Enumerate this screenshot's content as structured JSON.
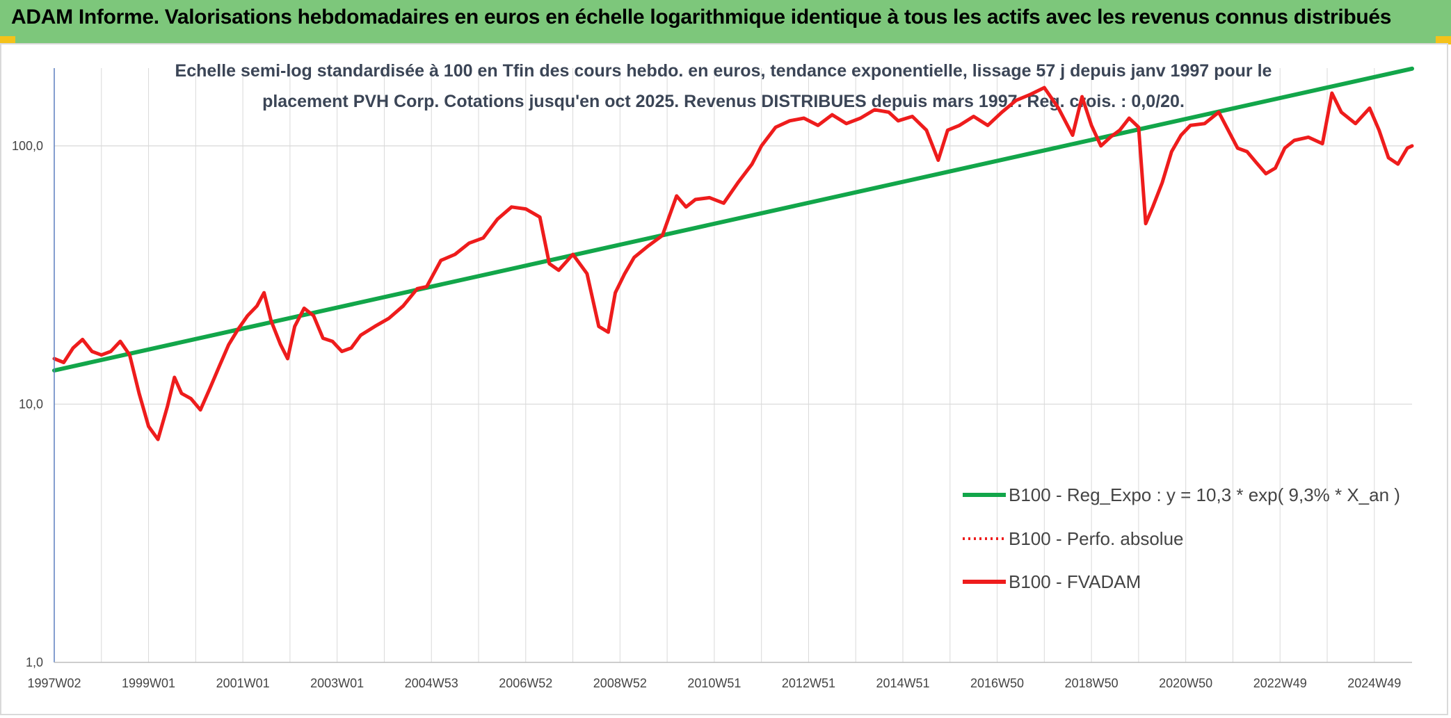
{
  "header": {
    "title": "ADAM Informe. Valorisations hebdomadaires en euros en échelle logarithmique identique à tous les actifs avec les revenus connus distribués"
  },
  "colors": {
    "banner": "#7dc77b",
    "corner_marker": "#f4c21a",
    "trend_line": "#12a64a",
    "fvadam_line": "#ee1c1c",
    "perfo_line": "#ee1c1c",
    "grid": "#d9d9d9",
    "axis": "#5b7fbf"
  },
  "chart_data": {
    "type": "line",
    "title_line1": "Echelle semi-log standardisée à 100 en Tfin des cours hebdo. en euros, tendance exponentielle, lissage 57 j depuis janv 1997 pour le",
    "title_line2": "placement PVH Corp. Cotations jusqu'en oct 2025. Revenus DISTRIBUES depuis mars 1997. Reg. crois. : 0,0/20.",
    "y_scale": "log",
    "ylim": [
      1,
      200
    ],
    "y_ticks": [
      1,
      10,
      100
    ],
    "y_tick_labels": [
      "1,0",
      "10,0",
      "100,0"
    ],
    "xlim": [
      1997.0,
      2025.8
    ],
    "x_tick_labels": [
      "1997W02",
      "1999W01",
      "2001W01",
      "2003W01",
      "2004W53",
      "2006W52",
      "2008W52",
      "2010W51",
      "2012W51",
      "2014W51",
      "2016W50",
      "2018W50",
      "2020W50",
      "2022W49",
      "2024W49"
    ],
    "x_tick_positions": [
      1997.0,
      1999.0,
      2001.0,
      2003.0,
      2005.0,
      2007.0,
      2009.0,
      2011.0,
      2013.0,
      2015.0,
      2017.0,
      2019.0,
      2021.0,
      2023.0,
      2025.0
    ],
    "grid": true,
    "legend_position": "bottom-right",
    "series": [
      {
        "name": "B100 - Reg_Expo : y = 10,3 * exp( 9,3% *  X_an )",
        "style": "solid-thick",
        "x": [
          1997.0,
          2025.8
        ],
        "y": [
          13.5,
          199
        ]
      },
      {
        "name": "B100 - Perfo. absolue",
        "style": "dotted",
        "x": [],
        "y": []
      },
      {
        "name": "B100 - FVADAM",
        "style": "solid",
        "x": [
          1997.0,
          1997.2,
          1997.4,
          1997.6,
          1997.8,
          1998.0,
          1998.2,
          1998.4,
          1998.6,
          1998.8,
          1999.0,
          1999.2,
          1999.4,
          1999.55,
          1999.7,
          1999.9,
          2000.1,
          2000.3,
          2000.5,
          2000.7,
          2000.9,
          2001.1,
          2001.3,
          2001.45,
          2001.6,
          2001.8,
          2001.95,
          2002.1,
          2002.3,
          2002.5,
          2002.7,
          2002.9,
          2003.1,
          2003.3,
          2003.5,
          2003.8,
          2004.1,
          2004.4,
          2004.7,
          2004.9,
          2005.2,
          2005.5,
          2005.8,
          2006.1,
          2006.4,
          2006.7,
          2007.0,
          2007.3,
          2007.5,
          2007.7,
          2008.0,
          2008.3,
          2008.55,
          2008.75,
          2008.9,
          2009.1,
          2009.3,
          2009.6,
          2009.9,
          2010.2,
          2010.4,
          2010.6,
          2010.9,
          2011.2,
          2011.5,
          2011.8,
          2012.0,
          2012.3,
          2012.6,
          2012.9,
          2013.2,
          2013.5,
          2013.8,
          2014.1,
          2014.4,
          2014.7,
          2014.9,
          2015.2,
          2015.5,
          2015.75,
          2015.95,
          2016.2,
          2016.5,
          2016.8,
          2017.1,
          2017.4,
          2017.7,
          2018.0,
          2018.3,
          2018.6,
          2018.8,
          2019.0,
          2019.2,
          2019.4,
          2019.6,
          2019.8,
          2020.0,
          2020.15,
          2020.3,
          2020.5,
          2020.7,
          2020.9,
          2021.1,
          2021.4,
          2021.7,
          2021.9,
          2022.1,
          2022.3,
          2022.5,
          2022.7,
          2022.9,
          2023.1,
          2023.3,
          2023.6,
          2023.9,
          2024.1,
          2024.3,
          2024.6,
          2024.9,
          2025.1,
          2025.3,
          2025.5,
          2025.7,
          2025.8
        ],
        "y": [
          15,
          14.5,
          16.5,
          17.8,
          16,
          15.5,
          16,
          17.5,
          15.5,
          11,
          8.2,
          7.3,
          9.8,
          12.7,
          11,
          10.5,
          9.5,
          11.5,
          14,
          17,
          19.5,
          22,
          24,
          27,
          21,
          17,
          15,
          20,
          23.5,
          22,
          18,
          17.5,
          16,
          16.5,
          18.5,
          20,
          21.5,
          24,
          28,
          28.5,
          36,
          38,
          42,
          44,
          52,
          58,
          57,
          53,
          35,
          33,
          38,
          32,
          20,
          19,
          27,
          32,
          37,
          41,
          45,
          64,
          58,
          62,
          63,
          60,
          72,
          85,
          100,
          118,
          125,
          128,
          120,
          132,
          122,
          128,
          138,
          135,
          125,
          130,
          115,
          88,
          115,
          120,
          130,
          120,
          135,
          150,
          158,
          168,
          140,
          110,
          155,
          120,
          100,
          108,
          115,
          128,
          118,
          50,
          58,
          72,
          95,
          110,
          120,
          122,
          135,
          115,
          98,
          95,
          86,
          78,
          82,
          98,
          105,
          108,
          102,
          160,
          135,
          122,
          140,
          115,
          90,
          85,
          98,
          100
        ]
      }
    ]
  }
}
